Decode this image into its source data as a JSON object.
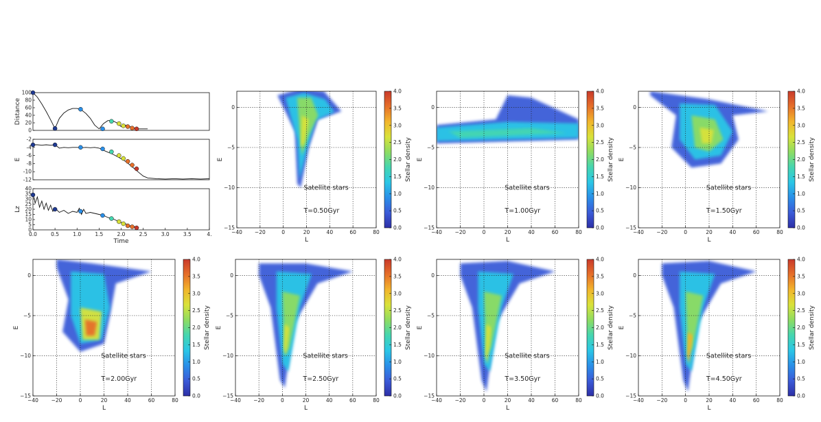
{
  "colors": {
    "cmap": [
      "#2d2fa6",
      "#3b5bd8",
      "#2a8fe8",
      "#2bc6e6",
      "#45d6b0",
      "#8edc62",
      "#d9e23a",
      "#f2b52c",
      "#e6702a",
      "#c93a2b"
    ],
    "line": "#111111",
    "marker_cmap": [
      "#1f3a93",
      "#2a8fe8",
      "#45d6b0",
      "#d9e23a",
      "#e6702a",
      "#c93a2b"
    ]
  },
  "chart_data": [
    {
      "type": "line",
      "panel": "distance",
      "xlabel": "",
      "ylabel": "Distance",
      "xlim": [
        0,
        4
      ],
      "ylim": [
        0,
        100
      ],
      "xticks": [],
      "yticks": [
        "0",
        "20",
        "40",
        "60",
        "80",
        "100"
      ],
      "series": [
        {
          "x": [
            0,
            0.1,
            0.2,
            0.3,
            0.4,
            0.5,
            0.6,
            0.7,
            0.8,
            0.9,
            1.0,
            1.1,
            1.2,
            1.3,
            1.4,
            1.5,
            1.6,
            1.7,
            1.8,
            1.9,
            2.0,
            2.1,
            2.2,
            2.3,
            2.4,
            2.5,
            2.6
          ],
          "y": [
            100,
            88,
            70,
            50,
            28,
            5,
            32,
            46,
            54,
            58,
            58,
            54,
            45,
            32,
            14,
            4,
            18,
            26,
            26,
            20,
            10,
            14,
            10,
            6,
            4,
            4,
            4
          ]
        }
      ],
      "markers": {
        "x": [
          0.0,
          0.5,
          1.08,
          1.58,
          1.78,
          1.95,
          2.05,
          2.15,
          2.25,
          2.35
        ],
        "y": [
          100,
          5,
          56,
          4,
          24,
          18,
          12,
          10,
          6,
          4
        ]
      }
    },
    {
      "type": "line",
      "panel": "energy",
      "xlabel": "",
      "ylabel": "E",
      "xlim": [
        0,
        4
      ],
      "ylim": [
        -13,
        -2
      ],
      "xticks": [],
      "yticks": [
        "-12",
        "-10",
        "-8",
        "-6",
        "-4",
        "-2"
      ],
      "series": [
        {
          "x": [
            0,
            0.1,
            0.2,
            0.3,
            0.4,
            0.5,
            0.6,
            0.7,
            0.8,
            0.9,
            1.0,
            1.1,
            1.2,
            1.3,
            1.4,
            1.5,
            1.6,
            1.7,
            1.8,
            1.9,
            2.0,
            2.1,
            2.2,
            2.3,
            2.4,
            2.5,
            2.6,
            2.8,
            3.0,
            3.2,
            3.4,
            3.6,
            3.8,
            4.0
          ],
          "y": [
            -3.5,
            -3.5,
            -3.6,
            -3.5,
            -3.6,
            -3.5,
            -4.4,
            -4.2,
            -4.3,
            -4.2,
            -4.2,
            -4.3,
            -4.2,
            -4.3,
            -4.2,
            -4.4,
            -5.0,
            -5.5,
            -6.0,
            -6.6,
            -7.3,
            -8.0,
            -9.0,
            -10.0,
            -11.0,
            -12.0,
            -12.5,
            -12.7,
            -12.8,
            -12.7,
            -12.8,
            -12.7,
            -12.8,
            -12.7
          ]
        }
      ],
      "markers": {
        "x": [
          0.0,
          0.5,
          1.08,
          1.58,
          1.78,
          1.95,
          2.05,
          2.15,
          2.25,
          2.35
        ],
        "y": [
          -3.5,
          -3.5,
          -4.2,
          -4.6,
          -5.4,
          -6.4,
          -7.2,
          -8.0,
          -9.0,
          -10.0
        ]
      }
    },
    {
      "type": "line",
      "panel": "lz",
      "xlabel": "Time",
      "ylabel": "Lz",
      "xlim": [
        0,
        4
      ],
      "ylim": [
        0,
        40
      ],
      "xticks": [
        "0.0",
        "0.5",
        "1.0",
        "1.5",
        "2.0",
        "2.5",
        "3.0",
        "3.5",
        "4."
      ],
      "yticks": [
        "0",
        "5",
        "10",
        "15",
        "20",
        "25",
        "30",
        "35",
        "40"
      ],
      "series": [
        {
          "x": [
            0,
            0.05,
            0.1,
            0.15,
            0.2,
            0.25,
            0.3,
            0.35,
            0.4,
            0.45,
            0.5,
            0.6,
            0.7,
            0.8,
            0.9,
            1.0,
            1.05,
            1.1,
            1.15,
            1.2,
            1.3,
            1.4,
            1.5,
            1.6,
            1.7,
            1.8,
            1.9,
            2.0,
            2.1,
            2.2,
            2.3,
            2.4
          ],
          "y": [
            36,
            26,
            32,
            22,
            28,
            20,
            26,
            19,
            24,
            18,
            21,
            17,
            19,
            16,
            18,
            17,
            21,
            15,
            20,
            16,
            17,
            16,
            15,
            14,
            12,
            11,
            9,
            7,
            6,
            4,
            3,
            2
          ]
        }
      ],
      "markers": {
        "x": [
          0.0,
          0.5,
          1.08,
          1.58,
          1.78,
          1.95,
          2.05,
          2.15,
          2.25,
          2.35
        ],
        "y": [
          34,
          20,
          18,
          14,
          11,
          8,
          6,
          4,
          3,
          2
        ]
      }
    },
    {
      "type": "heatmap",
      "panel": "t050",
      "xlabel": "L",
      "ylabel": "E",
      "xlim": [
        -40,
        80
      ],
      "ylim": [
        -15,
        2
      ],
      "xticks": [
        "−40",
        "−20",
        "0",
        "20",
        "40",
        "60",
        "80"
      ],
      "yticks": [
        "−15",
        "−10",
        "−5",
        "0"
      ],
      "annotations": [
        "Satellite stars",
        "T=0.50Gyr"
      ],
      "colorbar": {
        "label": "Stellar density",
        "range": [
          0,
          4
        ],
        "ticks": [
          "0.0",
          "0.5",
          "1.0",
          "1.5",
          "2.0",
          "2.5",
          "3.0",
          "3.5",
          "4.0"
        ]
      }
    },
    {
      "type": "heatmap",
      "panel": "t100",
      "xlabel": "L",
      "ylabel": "E",
      "xlim": [
        -40,
        80
      ],
      "ylim": [
        -15,
        2
      ],
      "xticks": [
        "−40",
        "−20",
        "0",
        "20",
        "40",
        "60",
        "80"
      ],
      "yticks": [
        "−15",
        "−10",
        "−5",
        "0"
      ],
      "annotations": [
        "Satellite stars",
        "T=1.00Gyr"
      ],
      "colorbar": {
        "label": "Stellar density",
        "range": [
          0,
          4
        ],
        "ticks": [
          "0.0",
          "0.5",
          "1.0",
          "1.5",
          "2.0",
          "2.5",
          "3.0",
          "3.5",
          "4.0"
        ]
      }
    },
    {
      "type": "heatmap",
      "panel": "t150",
      "xlabel": "L",
      "ylabel": "E",
      "xlim": [
        -40,
        80
      ],
      "ylim": [
        -15,
        2
      ],
      "xticks": [
        "−40",
        "−20",
        "0",
        "20",
        "40",
        "60",
        "80"
      ],
      "yticks": [
        "−15",
        "−10",
        "−5",
        "0"
      ],
      "annotations": [
        "Satellite stars",
        "T=1.50Gyr"
      ],
      "colorbar": {
        "label": "Stellar density",
        "range": [
          0,
          4
        ],
        "ticks": [
          "0.0",
          "0.5",
          "1.0",
          "1.5",
          "2.0",
          "2.5",
          "3.0",
          "3.5",
          "4.0"
        ]
      }
    },
    {
      "type": "heatmap",
      "panel": "t200",
      "xlabel": "L",
      "ylabel": "E",
      "xlim": [
        -40,
        80
      ],
      "ylim": [
        -15,
        2
      ],
      "xticks": [
        "−40",
        "−20",
        "0",
        "20",
        "40",
        "60",
        "80"
      ],
      "yticks": [
        "−15",
        "−10",
        "−5",
        "0"
      ],
      "annotations": [
        "Satellite stars",
        "T=2.00Gyr"
      ],
      "colorbar": {
        "label": "Stellar density",
        "range": [
          0,
          4
        ],
        "ticks": [
          "0.0",
          "0.5",
          "1.0",
          "1.5",
          "2.0",
          "2.5",
          "3.0",
          "3.5",
          "4.0"
        ]
      }
    },
    {
      "type": "heatmap",
      "panel": "t250",
      "xlabel": "L",
      "ylabel": "E",
      "xlim": [
        -40,
        80
      ],
      "ylim": [
        -15,
        2
      ],
      "xticks": [
        "−40",
        "−20",
        "0",
        "20",
        "40",
        "60",
        "80"
      ],
      "yticks": [
        "−15",
        "−10",
        "−5",
        "0"
      ],
      "annotations": [
        "Satellite stars",
        "T=2.50Gyr"
      ],
      "colorbar": {
        "label": "Stellar density",
        "range": [
          0,
          4
        ],
        "ticks": [
          "0.0",
          "0.5",
          "1.0",
          "1.5",
          "2.0",
          "2.5",
          "3.0",
          "3.5",
          "4.0"
        ]
      }
    },
    {
      "type": "heatmap",
      "panel": "t350",
      "xlabel": "L",
      "ylabel": "E",
      "xlim": [
        -40,
        80
      ],
      "ylim": [
        -15,
        2
      ],
      "xticks": [
        "−40",
        "−20",
        "0",
        "20",
        "40",
        "60",
        "80"
      ],
      "yticks": [
        "−15",
        "−10",
        "−5",
        "0"
      ],
      "annotations": [
        "Satellite stars",
        "T=3.50Gyr"
      ],
      "colorbar": {
        "label": "Stellar density",
        "range": [
          0,
          4
        ],
        "ticks": [
          "0.0",
          "0.5",
          "1.0",
          "1.5",
          "2.0",
          "2.5",
          "3.0",
          "3.5",
          "4.0"
        ]
      }
    },
    {
      "type": "heatmap",
      "panel": "t450",
      "xlabel": "L",
      "ylabel": "E",
      "xlim": [
        -40,
        80
      ],
      "ylim": [
        -15,
        2
      ],
      "xticks": [
        "−40",
        "−20",
        "0",
        "20",
        "40",
        "60",
        "80"
      ],
      "yticks": [
        "−15",
        "−10",
        "−5",
        "0"
      ],
      "annotations": [
        "Satellite stars",
        "T=4.50Gyr"
      ],
      "colorbar": {
        "label": "Stellar density",
        "range": [
          0,
          4
        ],
        "ticks": [
          "0.0",
          "0.5",
          "1.0",
          "1.5",
          "2.0",
          "2.5",
          "3.0",
          "3.5",
          "4.0"
        ]
      }
    }
  ]
}
